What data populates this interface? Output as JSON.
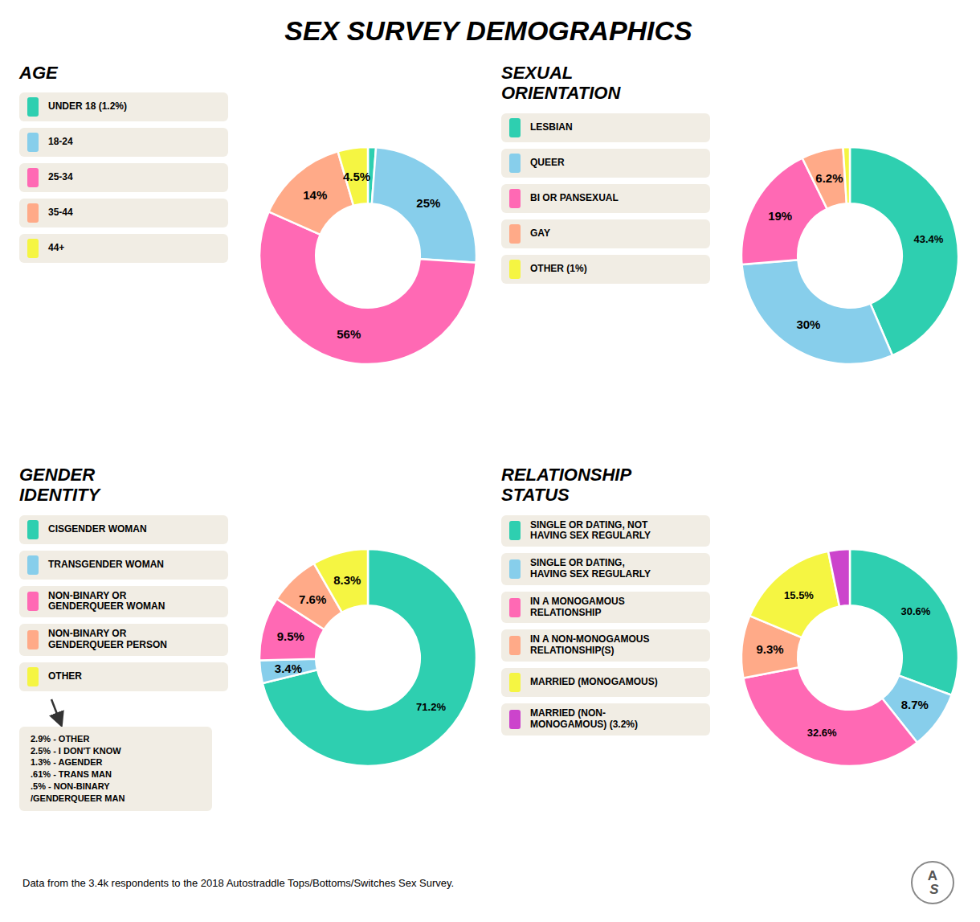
{
  "title": "SEX SURVEY DEMOGRAPHICS",
  "annotations": [
    "Data from the 3.4k respondents to the 2018 Autostraddle Tops/Bottoms/Switches Sex Survey.",
    "A",
    "S"
  ],
  "chart_data": [
    {
      "type": "donut",
      "title": "AGE",
      "categories": [
        "UNDER 18  (1.2%)",
        "18-24",
        "25-34",
        "35-44",
        "44+"
      ],
      "values": [
        1.2,
        25.0,
        56.0,
        14.0,
        4.5
      ],
      "value_labels": [
        null,
        "25%",
        "56%",
        "14%",
        "4.5%"
      ],
      "colors": [
        "#2ecfb0",
        "#87ceeb",
        "#ff69b4",
        "#ffaa88",
        "#f5f542"
      ],
      "data_labels": true
    },
    {
      "type": "donut",
      "title": "SEXUAL\nORIENTATION",
      "categories": [
        "LESBIAN",
        "QUEER",
        "BI OR PANSEXUAL",
        "GAY",
        "OTHER          (1%)"
      ],
      "values": [
        43.4,
        30.0,
        19.0,
        6.2,
        1.0
      ],
      "value_labels": [
        "43.4%",
        "30%",
        "19%",
        "6.2%",
        null
      ],
      "colors": [
        "#2ecfb0",
        "#87ceeb",
        "#ff69b4",
        "#ffaa88",
        "#f5f542"
      ],
      "data_labels": true
    },
    {
      "type": "donut",
      "title": "GENDER\nIDENTITY",
      "categories": [
        "CISGENDER WOMAN",
        "TRANSGENDER WOMAN",
        "NON-BINARY OR\nGENDERQUEER WOMAN",
        "NON-BINARY OR\nGENDERQUEER PERSON",
        "OTHER"
      ],
      "values": [
        71.2,
        3.4,
        9.5,
        7.6,
        8.3
      ],
      "value_labels": [
        "71.2%",
        "3.4%",
        "9.5%",
        "7.6%",
        "8.3%"
      ],
      "colors": [
        "#2ecfb0",
        "#87ceeb",
        "#ff69b4",
        "#ffaa88",
        "#f5f542"
      ],
      "data_labels": true,
      "annotations": [
        "2.9% - OTHER\n2.5% - I DON'T KNOW\n1.3% - AGENDER\n.61% - TRANS MAN\n.5% - NON-BINARY\n/GENDERQUEER MAN"
      ]
    },
    {
      "type": "donut",
      "title": "RELATIONSHIP\nSTATUS",
      "categories": [
        "SINGLE OR DATING, NOT\nHAVING SEX REGULARLY",
        "SINGLE OR DATING,\nHAVING SEX REGULARLY",
        "IN A MONOGAMOUS\nRELATIONSHIP",
        "IN A NON-MONOGAMOUS\nRELATIONSHIP(S)",
        "MARRIED (MONOGAMOUS)",
        "MARRIED (NON-\nMONOGAMOUS)  (3.2%)"
      ],
      "values": [
        30.6,
        8.7,
        32.6,
        9.3,
        15.5,
        3.2
      ],
      "value_labels": [
        "30.6%",
        "8.7%",
        "32.6%",
        "9.3%",
        "15.5%",
        null
      ],
      "colors": [
        "#2ecfb0",
        "#87ceeb",
        "#ff69b4",
        "#ffaa88",
        "#f5f542",
        "#cc44cc"
      ],
      "data_labels": true
    }
  ]
}
